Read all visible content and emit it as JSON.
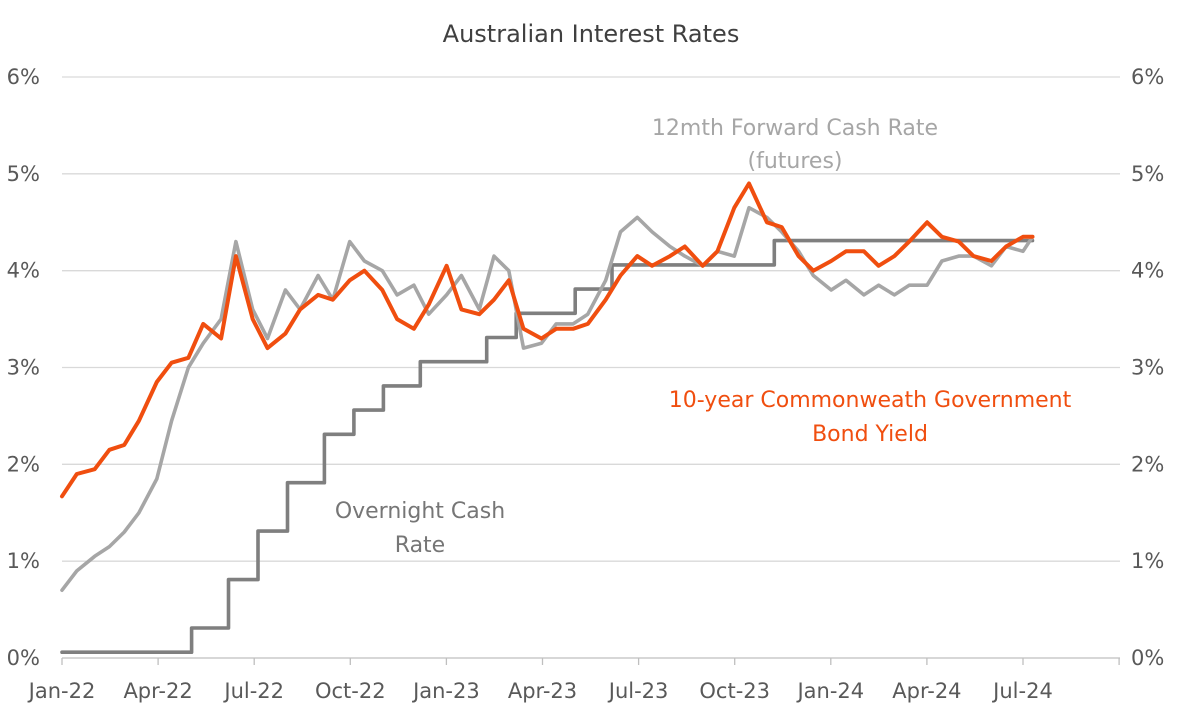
{
  "chart_data": {
    "type": "line",
    "title": "Australian Interest Rates",
    "xlabel": "",
    "ylabel": "",
    "ylim": [
      0,
      6
    ],
    "y_ticks": [
      "0%",
      "1%",
      "2%",
      "3%",
      "4%",
      "5%",
      "6%"
    ],
    "y_ticks_right": [
      "0%",
      "1%",
      "2%",
      "3%",
      "4%",
      "5%",
      "6%"
    ],
    "x_ticks": [
      "Jan-22",
      "Apr-22",
      "Jul-22",
      "Oct-22",
      "Jan-23",
      "Apr-23",
      "Jul-23",
      "Oct-23",
      "Jan-24",
      "Apr-24",
      "Jul-24"
    ],
    "grid": "horizontal",
    "legend": "none",
    "annotations": [
      {
        "id": "forward",
        "lines": [
          "12mth Forward Cash Rate",
          "(futures)"
        ]
      },
      {
        "id": "bond",
        "lines": [
          "10-year Commonweath Government",
          "Bond Yield"
        ]
      },
      {
        "id": "cash",
        "lines": [
          "Overnight Cash",
          "Rate"
        ]
      }
    ],
    "series": [
      {
        "name": "Overnight Cash Rate",
        "color": "#7f7f7f",
        "x": [
          "2022-01-01",
          "2022-05-04",
          "2022-06-08",
          "2022-07-06",
          "2022-08-03",
          "2022-09-07",
          "2022-10-05",
          "2022-11-02",
          "2022-12-07",
          "2023-02-08",
          "2023-03-08",
          "2023-05-03",
          "2023-06-07",
          "2023-11-08",
          "2024-07-10"
        ],
        "values": [
          0.06,
          0.31,
          0.81,
          1.31,
          1.81,
          2.31,
          2.56,
          2.81,
          3.06,
          3.31,
          3.56,
          3.81,
          4.06,
          4.31,
          4.31
        ]
      },
      {
        "name": "12mth Forward Cash Rate (futures)",
        "color": "#a6a6a6",
        "x": [
          "2022-01-01",
          "2022-01-15",
          "2022-02-01",
          "2022-02-15",
          "2022-03-01",
          "2022-03-15",
          "2022-04-01",
          "2022-04-15",
          "2022-05-01",
          "2022-05-15",
          "2022-06-01",
          "2022-06-15",
          "2022-07-01",
          "2022-07-15",
          "2022-08-01",
          "2022-08-15",
          "2022-09-01",
          "2022-09-15",
          "2022-10-01",
          "2022-10-15",
          "2022-11-01",
          "2022-11-15",
          "2022-12-01",
          "2022-12-15",
          "2023-01-01",
          "2023-01-15",
          "2023-02-01",
          "2023-02-15",
          "2023-03-01",
          "2023-03-15",
          "2023-04-01",
          "2023-04-15",
          "2023-05-01",
          "2023-05-15",
          "2023-06-01",
          "2023-06-15",
          "2023-07-01",
          "2023-07-15",
          "2023-08-01",
          "2023-08-15",
          "2023-09-01",
          "2023-09-15",
          "2023-10-01",
          "2023-10-15",
          "2023-11-01",
          "2023-11-15",
          "2023-12-01",
          "2023-12-15",
          "2024-01-01",
          "2024-01-15",
          "2024-02-01",
          "2024-02-15",
          "2024-03-01",
          "2024-03-15",
          "2024-04-01",
          "2024-04-15",
          "2024-05-01",
          "2024-05-15",
          "2024-06-01",
          "2024-06-15",
          "2024-07-01",
          "2024-07-10"
        ],
        "values": [
          0.7,
          0.9,
          1.05,
          1.15,
          1.3,
          1.5,
          1.85,
          2.45,
          3.0,
          3.25,
          3.5,
          4.3,
          3.6,
          3.3,
          3.8,
          3.6,
          3.95,
          3.7,
          4.3,
          4.1,
          4.0,
          3.75,
          3.85,
          3.55,
          3.75,
          3.95,
          3.6,
          4.15,
          4.0,
          3.2,
          3.25,
          3.45,
          3.45,
          3.55,
          3.9,
          4.4,
          4.55,
          4.4,
          4.25,
          4.15,
          4.05,
          4.2,
          4.15,
          4.65,
          4.55,
          4.4,
          4.2,
          3.95,
          3.8,
          3.9,
          3.75,
          3.85,
          3.75,
          3.85,
          3.85,
          4.1,
          4.15,
          4.15,
          4.05,
          4.25,
          4.2,
          4.35
        ]
      },
      {
        "name": "10-year Commonweath Government Bond Yield",
        "color": "#f04e0f",
        "x": [
          "2022-01-01",
          "2022-01-15",
          "2022-02-01",
          "2022-02-15",
          "2022-03-01",
          "2022-03-15",
          "2022-04-01",
          "2022-04-15",
          "2022-05-01",
          "2022-05-15",
          "2022-06-01",
          "2022-06-15",
          "2022-07-01",
          "2022-07-15",
          "2022-08-01",
          "2022-08-15",
          "2022-09-01",
          "2022-09-15",
          "2022-10-01",
          "2022-10-15",
          "2022-11-01",
          "2022-11-15",
          "2022-12-01",
          "2022-12-15",
          "2023-01-01",
          "2023-01-15",
          "2023-02-01",
          "2023-02-15",
          "2023-03-01",
          "2023-03-15",
          "2023-04-01",
          "2023-04-15",
          "2023-05-01",
          "2023-05-15",
          "2023-06-01",
          "2023-06-15",
          "2023-07-01",
          "2023-07-15",
          "2023-08-01",
          "2023-08-15",
          "2023-09-01",
          "2023-09-15",
          "2023-10-01",
          "2023-10-15",
          "2023-11-01",
          "2023-11-15",
          "2023-12-01",
          "2023-12-15",
          "2024-01-01",
          "2024-01-15",
          "2024-02-01",
          "2024-02-15",
          "2024-03-01",
          "2024-03-15",
          "2024-04-01",
          "2024-04-15",
          "2024-05-01",
          "2024-05-15",
          "2024-06-01",
          "2024-06-15",
          "2024-07-01",
          "2024-07-10"
        ],
        "values": [
          1.67,
          1.9,
          1.95,
          2.15,
          2.2,
          2.45,
          2.85,
          3.05,
          3.1,
          3.45,
          3.3,
          4.15,
          3.5,
          3.2,
          3.35,
          3.6,
          3.75,
          3.7,
          3.9,
          4.0,
          3.8,
          3.5,
          3.4,
          3.65,
          4.05,
          3.6,
          3.55,
          3.7,
          3.9,
          3.4,
          3.3,
          3.4,
          3.4,
          3.45,
          3.7,
          3.95,
          4.15,
          4.05,
          4.15,
          4.25,
          4.05,
          4.2,
          4.65,
          4.9,
          4.5,
          4.45,
          4.15,
          4.0,
          4.1,
          4.2,
          4.2,
          4.05,
          4.15,
          4.3,
          4.5,
          4.35,
          4.3,
          4.15,
          4.1,
          4.25,
          4.35,
          4.35
        ]
      }
    ]
  }
}
